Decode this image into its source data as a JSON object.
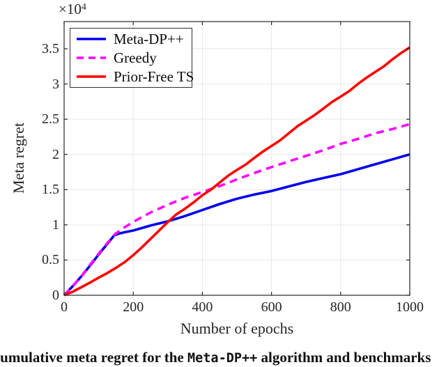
{
  "figure": {
    "exponent_base": "×10",
    "exponent_power": "4",
    "xlabel": "Number of epochs",
    "ylabel": "Meta regret",
    "caption": {
      "prefix": "Cumulative meta regret for the ",
      "code": "Meta-DP++",
      "suffix": " algorithm and benchmarks"
    },
    "colors": {
      "axis": "#262626",
      "grid": "#e6e6e6",
      "background": "#ffffff"
    }
  },
  "chart_data": {
    "type": "line",
    "title": "",
    "xlabel": "Number of epochs",
    "ylabel": "Meta regret",
    "y_unit_multiplier": "1e4",
    "xlim": [
      0,
      1000
    ],
    "ylim": [
      0,
      3.886
    ],
    "xticks": [
      0,
      200,
      400,
      600,
      800,
      1000
    ],
    "yticks": [
      0,
      0.5,
      1,
      1.5,
      2,
      2.5,
      3,
      3.5
    ],
    "grid": true,
    "legend_position": "top-left",
    "legend": [
      {
        "label": "Meta-DP++",
        "color": "#0000ee",
        "style": "solid"
      },
      {
        "label": "Greedy",
        "color": "#ff00ff",
        "style": "dashed"
      },
      {
        "label": "Prior-Free TS",
        "color": "#ff0000",
        "style": "solid"
      }
    ],
    "series": [
      {
        "name": "Meta-DP++",
        "color": "#0000ee",
        "style": "solid",
        "points": [
          [
            0,
            0
          ],
          [
            25,
            0.13
          ],
          [
            50,
            0.27
          ],
          [
            75,
            0.42
          ],
          [
            100,
            0.58
          ],
          [
            125,
            0.73
          ],
          [
            145,
            0.85
          ],
          [
            158,
            0.875
          ],
          [
            175,
            0.895
          ],
          [
            200,
            0.92
          ],
          [
            250,
            0.99
          ],
          [
            300,
            1.05
          ],
          [
            350,
            1.125
          ],
          [
            400,
            1.21
          ],
          [
            450,
            1.295
          ],
          [
            500,
            1.37
          ],
          [
            550,
            1.43
          ],
          [
            600,
            1.48
          ],
          [
            650,
            1.545
          ],
          [
            700,
            1.61
          ],
          [
            750,
            1.665
          ],
          [
            800,
            1.72
          ],
          [
            850,
            1.79
          ],
          [
            900,
            1.86
          ],
          [
            950,
            1.93
          ],
          [
            1000,
            2.0
          ]
        ]
      },
      {
        "name": "Greedy",
        "color": "#ff00ff",
        "style": "dashed",
        "points": [
          [
            0,
            0
          ],
          [
            25,
            0.13
          ],
          [
            50,
            0.27
          ],
          [
            75,
            0.43
          ],
          [
            100,
            0.59
          ],
          [
            125,
            0.74
          ],
          [
            148,
            0.87
          ],
          [
            175,
            0.965
          ],
          [
            200,
            1.04
          ],
          [
            225,
            1.11
          ],
          [
            250,
            1.175
          ],
          [
            275,
            1.23
          ],
          [
            300,
            1.285
          ],
          [
            325,
            1.335
          ],
          [
            350,
            1.385
          ],
          [
            400,
            1.465
          ],
          [
            450,
            1.55
          ],
          [
            500,
            1.645
          ],
          [
            550,
            1.735
          ],
          [
            600,
            1.82
          ],
          [
            650,
            1.9
          ],
          [
            700,
            1.98
          ],
          [
            750,
            2.06
          ],
          [
            800,
            2.15
          ],
          [
            850,
            2.22
          ],
          [
            900,
            2.3
          ],
          [
            950,
            2.36
          ],
          [
            1000,
            2.43
          ]
        ]
      },
      {
        "name": "Prior-Free TS",
        "color": "#ff0000",
        "style": "solid",
        "points": [
          [
            0,
            0
          ],
          [
            25,
            0.05
          ],
          [
            50,
            0.115
          ],
          [
            75,
            0.18
          ],
          [
            100,
            0.25
          ],
          [
            125,
            0.315
          ],
          [
            150,
            0.39
          ],
          [
            175,
            0.47
          ],
          [
            200,
            0.57
          ],
          [
            225,
            0.68
          ],
          [
            250,
            0.8
          ],
          [
            275,
            0.92
          ],
          [
            300,
            1.04
          ],
          [
            325,
            1.15
          ],
          [
            350,
            1.23
          ],
          [
            375,
            1.32
          ],
          [
            400,
            1.42
          ],
          [
            425,
            1.5
          ],
          [
            450,
            1.6
          ],
          [
            475,
            1.7
          ],
          [
            500,
            1.78
          ],
          [
            525,
            1.855
          ],
          [
            550,
            1.95
          ],
          [
            575,
            2.04
          ],
          [
            600,
            2.12
          ],
          [
            625,
            2.2
          ],
          [
            650,
            2.3
          ],
          [
            675,
            2.4
          ],
          [
            700,
            2.48
          ],
          [
            725,
            2.56
          ],
          [
            750,
            2.65
          ],
          [
            775,
            2.745
          ],
          [
            800,
            2.82
          ],
          [
            825,
            2.9
          ],
          [
            850,
            3.0
          ],
          [
            875,
            3.09
          ],
          [
            900,
            3.17
          ],
          [
            925,
            3.25
          ],
          [
            950,
            3.35
          ],
          [
            975,
            3.44
          ],
          [
            1000,
            3.52
          ]
        ]
      }
    ]
  }
}
